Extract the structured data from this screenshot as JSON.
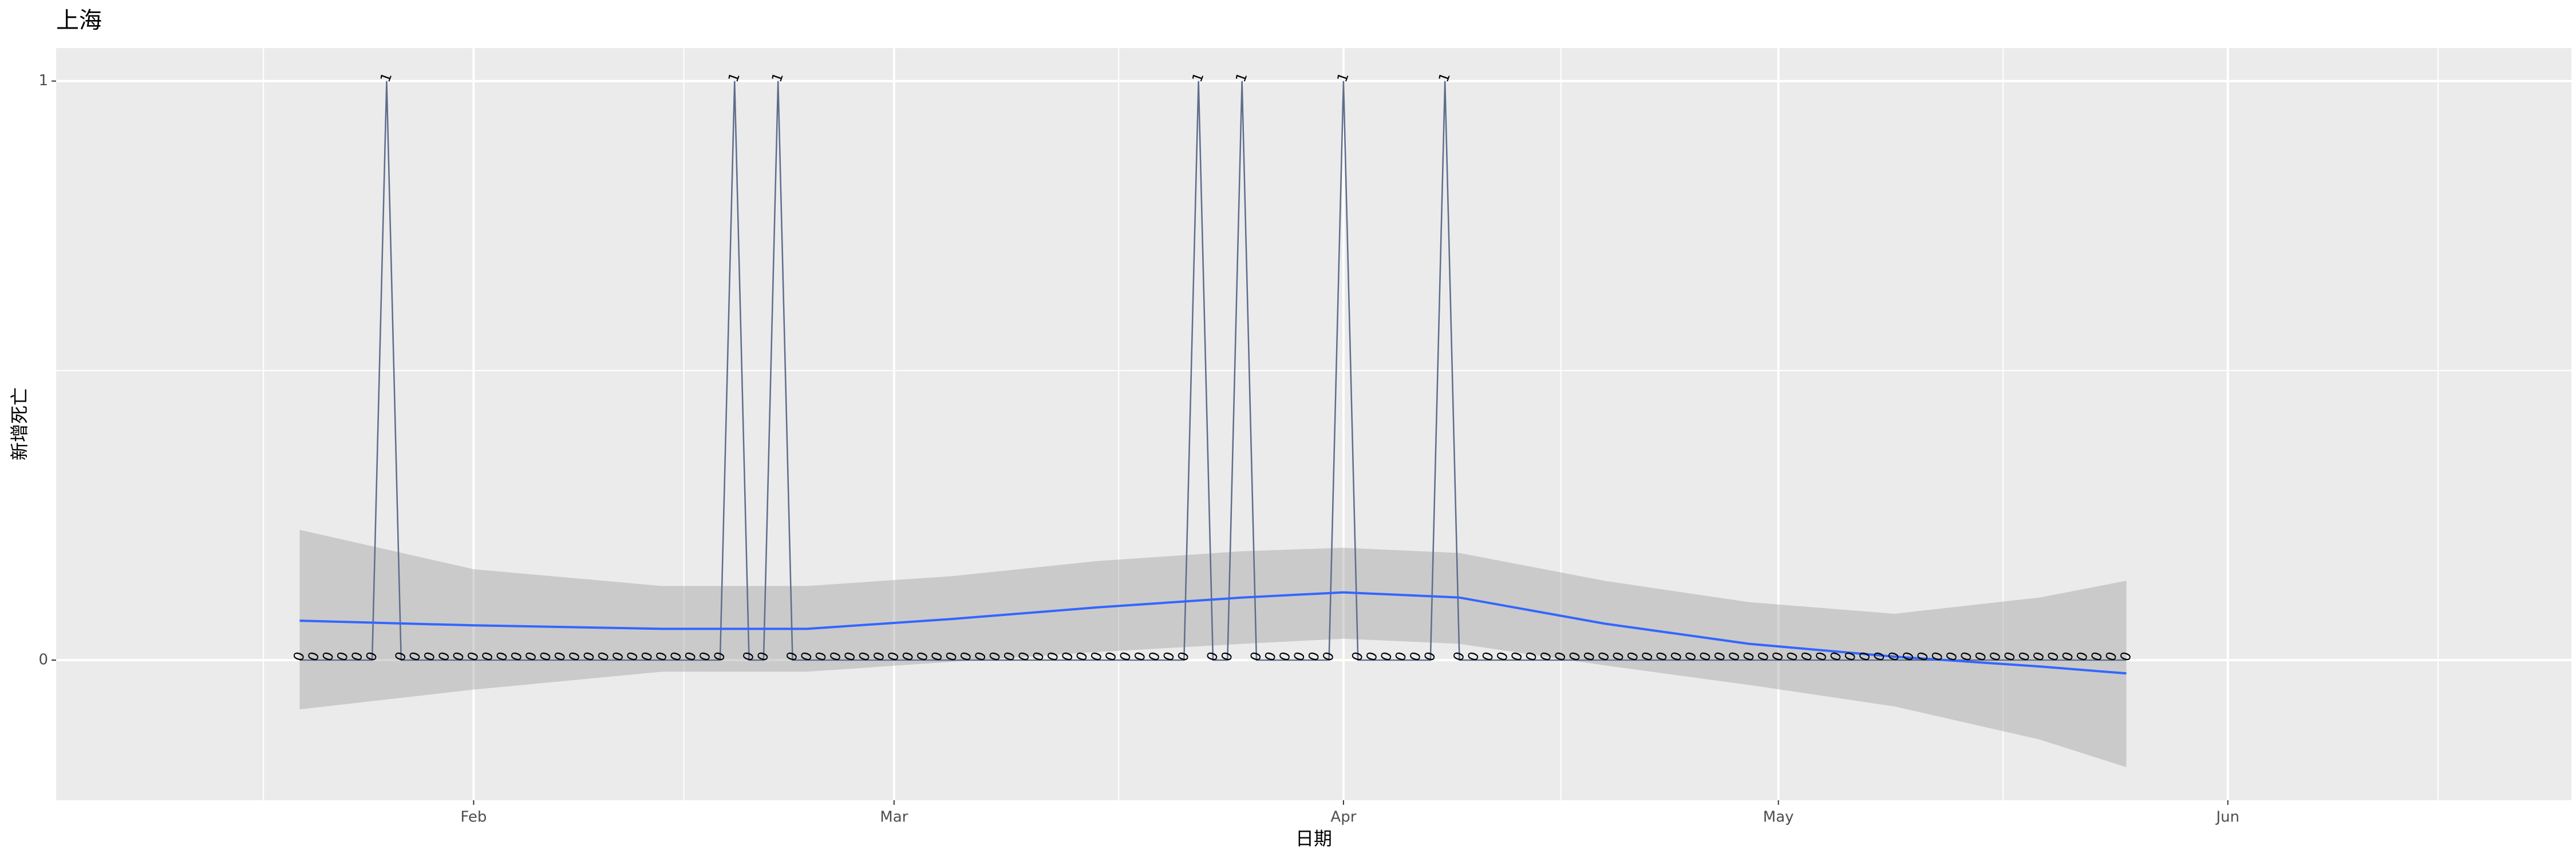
{
  "chart_data": {
    "type": "line",
    "title": "上海",
    "x_label": "日期",
    "y_label": "新增死亡",
    "x": [
      20,
      21,
      22,
      23,
      24,
      25,
      26,
      27,
      28,
      29,
      30,
      31,
      32,
      33,
      34,
      35,
      36,
      37,
      38,
      39,
      40,
      41,
      42,
      43,
      44,
      45,
      46,
      47,
      48,
      49,
      50,
      51,
      52,
      53,
      54,
      55,
      56,
      57,
      58,
      59,
      60,
      61,
      62,
      63,
      64,
      65,
      66,
      67,
      68,
      69,
      70,
      71,
      72,
      73,
      74,
      75,
      76,
      77,
      78,
      79,
      80,
      81,
      82,
      83,
      84,
      85,
      86,
      87,
      88,
      89,
      90,
      91,
      92,
      93,
      94,
      95,
      96,
      97,
      98,
      99,
      100,
      101,
      102,
      103,
      104,
      105,
      106,
      107,
      108,
      109,
      110,
      111,
      112,
      113,
      114,
      115,
      116,
      117,
      118,
      119,
      120,
      121,
      122,
      123,
      124,
      125,
      126,
      127,
      128,
      129,
      130,
      131,
      132,
      133,
      134,
      135,
      136,
      137,
      138,
      139,
      140,
      141,
      142,
      143,
      144,
      145,
      146
    ],
    "values": [
      0,
      0,
      0,
      0,
      0,
      0,
      1,
      0,
      0,
      0,
      0,
      0,
      0,
      0,
      0,
      0,
      0,
      0,
      0,
      0,
      0,
      0,
      0,
      0,
      0,
      0,
      0,
      0,
      0,
      0,
      1,
      0,
      0,
      1,
      0,
      0,
      0,
      0,
      0,
      0,
      0,
      0,
      0,
      0,
      0,
      0,
      0,
      0,
      0,
      0,
      0,
      0,
      0,
      0,
      0,
      0,
      0,
      0,
      0,
      0,
      0,
      0,
      1,
      0,
      0,
      1,
      0,
      0,
      0,
      0,
      0,
      0,
      1,
      0,
      0,
      0,
      0,
      0,
      0,
      1,
      0,
      0,
      0,
      0,
      0,
      0,
      0,
      0,
      0,
      0,
      0,
      0,
      0,
      0,
      0,
      0,
      0,
      0,
      0,
      0,
      0,
      0,
      0,
      0,
      0,
      0,
      0,
      0,
      0,
      0,
      0,
      0,
      0,
      0,
      0,
      0,
      0,
      0,
      0,
      0,
      0,
      0,
      0,
      0,
      0,
      0,
      0
    ],
    "color": "#5d6d8c",
    "smooth": {
      "color": "#3366ff",
      "band_color": "#999999",
      "x": [
        20,
        32,
        45,
        55,
        65,
        75,
        85,
        92,
        100,
        110,
        120,
        130,
        140,
        146
      ],
      "values": [
        0.068,
        0.06,
        0.054,
        0.054,
        0.071,
        0.091,
        0.108,
        0.117,
        0.108,
        0.063,
        0.028,
        0.006,
        -0.011,
        -0.023
      ],
      "lower": [
        -0.085,
        -0.051,
        -0.02,
        -0.02,
        -0.003,
        0.014,
        0.028,
        0.037,
        0.028,
        -0.009,
        -0.043,
        -0.08,
        -0.137,
        -0.185
      ],
      "upper": [
        0.225,
        0.157,
        0.128,
        0.128,
        0.145,
        0.171,
        0.188,
        0.194,
        0.185,
        0.137,
        0.1,
        0.08,
        0.108,
        0.137
      ]
    },
    "xlim": [
      3.2,
      176.7
    ],
    "xticks": [
      {
        "value": 32,
        "label": "Feb"
      },
      {
        "value": 61,
        "label": "Mar"
      },
      {
        "value": 92,
        "label": "Apr"
      },
      {
        "value": 122,
        "label": "May"
      },
      {
        "value": 153,
        "label": "Jun"
      }
    ],
    "ylim": [
      -0.242,
      1.057
    ],
    "yticks": [
      0,
      1
    ],
    "grid": true
  }
}
